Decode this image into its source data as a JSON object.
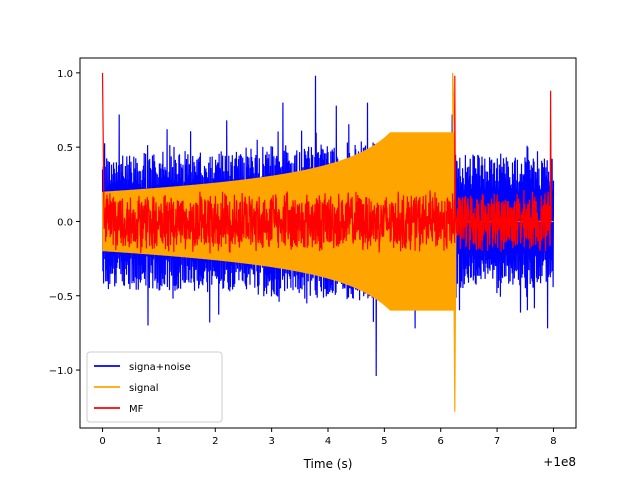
{
  "chart_data": {
    "type": "line",
    "title": "",
    "xlabel": "Time (s)",
    "ylabel": "",
    "axis_offset_label": "+1e8",
    "xlim": [
      -0.4,
      8.4
    ],
    "ylim": [
      -1.39,
      1.1
    ],
    "xticks": [
      0,
      1,
      2,
      3,
      4,
      5,
      6,
      7,
      8
    ],
    "yticks": [
      -1.0,
      -0.5,
      0.0,
      0.5,
      1.0
    ],
    "ytick_labels": [
      "−1.0",
      "−0.5",
      "0.0",
      "0.5",
      "1.0"
    ],
    "legend_position": "lower-left",
    "series": [
      {
        "name": "signa+noise",
        "color": "#0000ff",
        "description": "chirp signal plus noise, t = 0 to 8",
        "noise_band": [
          0.2,
          0.45
        ],
        "spikes": [
          {
            "x": 0.3,
            "y": 0.72
          },
          {
            "x": 0.8,
            "y": -0.7
          },
          {
            "x": 1.15,
            "y": 0.62
          },
          {
            "x": 1.9,
            "y": -0.68
          },
          {
            "x": 2.2,
            "y": 0.68
          },
          {
            "x": 2.75,
            "y": 0.55
          },
          {
            "x": 3.2,
            "y": 0.8
          },
          {
            "x": 3.78,
            "y": 0.98
          },
          {
            "x": 4.15,
            "y": 0.78
          },
          {
            "x": 4.7,
            "y": 0.8
          },
          {
            "x": 4.85,
            "y": -1.04
          },
          {
            "x": 5.55,
            "y": -0.72
          },
          {
            "x": 6.2,
            "y": 0.72
          },
          {
            "x": 7.55,
            "y": 0.5
          },
          {
            "x": 7.9,
            "y": -0.72
          }
        ]
      },
      {
        "name": "signal",
        "color": "#ffa500",
        "description": "chirp with growing amplitude, ends at t = 6.25",
        "chirp_end": 6.25,
        "amplitude_start": 0.2,
        "peak_max": 1.0,
        "peak_min": -1.28
      },
      {
        "name": "MF",
        "color": "#ff0000",
        "description": "matched-filter output, spikes at edges",
        "noise_band": 0.22,
        "spikes": [
          {
            "x": 0.0,
            "y": 1.0
          },
          {
            "x": 6.25,
            "y": 0.98
          },
          {
            "x": 7.95,
            "y": 0.88
          }
        ]
      }
    ]
  }
}
